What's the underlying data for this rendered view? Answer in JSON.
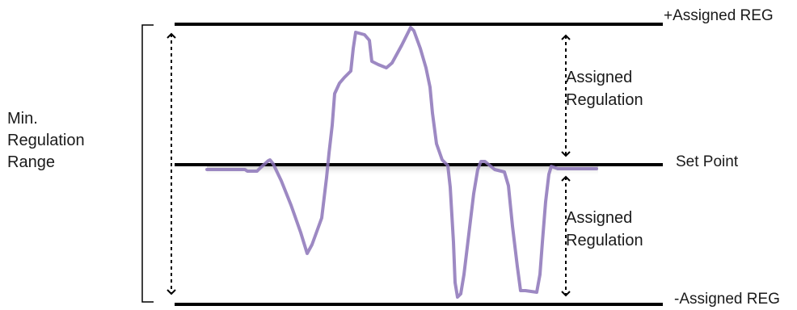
{
  "labels": {
    "top_reference": "+Assigned REG",
    "set_point": "Set Point",
    "bottom_reference": "-Assigned REG",
    "min_range_line1": "Min.",
    "min_range_line2": "Regulation",
    "min_range_line3": "Range",
    "assigned_upper_line1": "Assigned",
    "assigned_upper_line2": "Regulation",
    "assigned_lower_line1": "Assigned",
    "assigned_lower_line2": "Regulation"
  },
  "colors": {
    "reference_lines": "#000000",
    "signal": "#8c74b8",
    "text": "#1a1a1a"
  }
}
